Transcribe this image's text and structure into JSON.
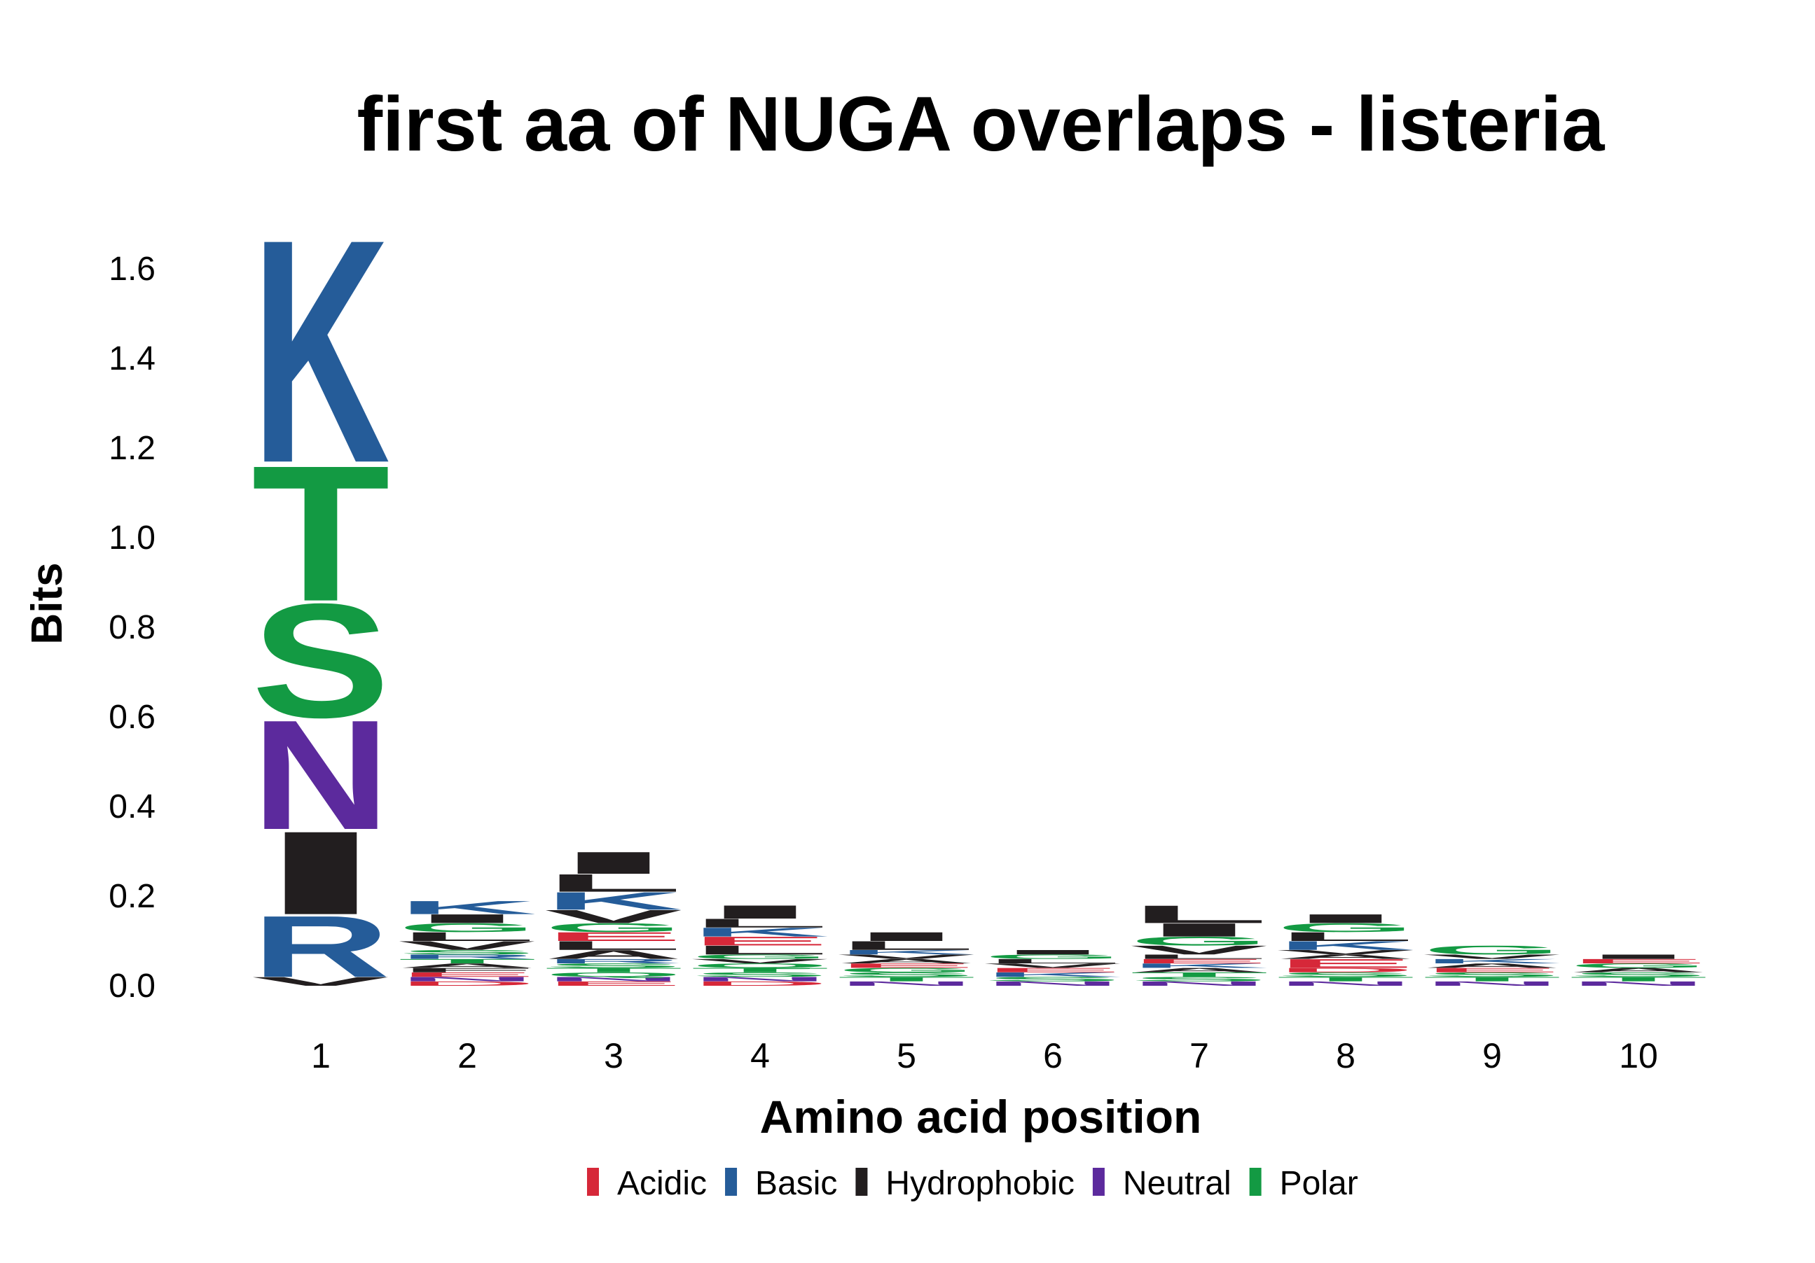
{
  "chart_data": {
    "type": "sequence-logo",
    "title": "first aa of NUGA overlaps - listeria",
    "xlabel": "Amino acid position",
    "ylabel": "Bits",
    "ylim": [
      0,
      1.7
    ],
    "yticks": [
      "0.0",
      "0.2",
      "0.4",
      "0.6",
      "0.8",
      "1.0",
      "1.2",
      "1.4",
      "1.6"
    ],
    "categories": [
      "1",
      "2",
      "3",
      "4",
      "5",
      "6",
      "7",
      "8",
      "9",
      "10"
    ],
    "colors": {
      "Acidic": "#d62839",
      "Basic": "#255c99",
      "Hydrophobic": "#221e1f",
      "Neutral": "#5c2a9d",
      "Polar": "#139a43"
    },
    "legend": [
      {
        "label": "Acidic",
        "color": "#d62839"
      },
      {
        "label": "Basic",
        "color": "#255c99"
      },
      {
        "label": "Hydrophobic",
        "color": "#221e1f"
      },
      {
        "label": "Neutral",
        "color": "#5c2a9d"
      },
      {
        "label": "Polar",
        "color": "#139a43"
      }
    ],
    "columns": [
      {
        "position": "1",
        "letters": [
          {
            "aa": "V",
            "group": "Hydrophobic",
            "bits": 0.02
          },
          {
            "aa": "R",
            "group": "Basic",
            "bits": 0.14
          },
          {
            "aa": "I",
            "group": "Hydrophobic",
            "bits": 0.19
          },
          {
            "aa": "N",
            "group": "Neutral",
            "bits": 0.25
          },
          {
            "aa": "S",
            "group": "Polar",
            "bits": 0.26
          },
          {
            "aa": "T",
            "group": "Polar",
            "bits": 0.31
          },
          {
            "aa": "K",
            "group": "Basic",
            "bits": 0.51
          }
        ]
      },
      {
        "position": "2",
        "letters": [
          {
            "aa": "D",
            "group": "Acidic",
            "bits": 0.01
          },
          {
            "aa": "N",
            "group": "Neutral",
            "bits": 0.01
          },
          {
            "aa": "E",
            "group": "Acidic",
            "bits": 0.01
          },
          {
            "aa": "F",
            "group": "Hydrophobic",
            "bits": 0.01
          },
          {
            "aa": "A",
            "group": "Hydrophobic",
            "bits": 0.01
          },
          {
            "aa": "T",
            "group": "Polar",
            "bits": 0.01
          },
          {
            "aa": "R",
            "group": "Basic",
            "bits": 0.01
          },
          {
            "aa": "S",
            "group": "Polar",
            "bits": 0.01
          },
          {
            "aa": "V",
            "group": "Hydrophobic",
            "bits": 0.02
          },
          {
            "aa": "L",
            "group": "Hydrophobic",
            "bits": 0.02
          },
          {
            "aa": "G",
            "group": "Polar",
            "bits": 0.02
          },
          {
            "aa": "I",
            "group": "Hydrophobic",
            "bits": 0.02
          },
          {
            "aa": "K",
            "group": "Basic",
            "bits": 0.03
          }
        ]
      },
      {
        "position": "3",
        "letters": [
          {
            "aa": "E",
            "group": "Acidic",
            "bits": 0.01
          },
          {
            "aa": "N",
            "group": "Neutral",
            "bits": 0.01
          },
          {
            "aa": "Q",
            "group": "Polar",
            "bits": 0.01
          },
          {
            "aa": "T",
            "group": "Polar",
            "bits": 0.01
          },
          {
            "aa": "S",
            "group": "Polar",
            "bits": 0.01
          },
          {
            "aa": "R",
            "group": "Basic",
            "bits": 0.01
          },
          {
            "aa": "A",
            "group": "Hydrophobic",
            "bits": 0.02
          },
          {
            "aa": "L",
            "group": "Hydrophobic",
            "bits": 0.02
          },
          {
            "aa": "E",
            "group": "Acidic",
            "bits": 0.02
          },
          {
            "aa": "G",
            "group": "Polar",
            "bits": 0.02
          },
          {
            "aa": "V",
            "group": "Hydrophobic",
            "bits": 0.03
          },
          {
            "aa": "K",
            "group": "Basic",
            "bits": 0.04
          },
          {
            "aa": "L",
            "group": "Hydrophobic",
            "bits": 0.04
          },
          {
            "aa": "I",
            "group": "Hydrophobic",
            "bits": 0.05
          }
        ]
      },
      {
        "position": "4",
        "letters": [
          {
            "aa": "D",
            "group": "Acidic",
            "bits": 0.01
          },
          {
            "aa": "N",
            "group": "Neutral",
            "bits": 0.01
          },
          {
            "aa": "S",
            "group": "Polar",
            "bits": 0.01
          },
          {
            "aa": "T",
            "group": "Polar",
            "bits": 0.01
          },
          {
            "aa": "Q",
            "group": "Polar",
            "bits": 0.01
          },
          {
            "aa": "V",
            "group": "Hydrophobic",
            "bits": 0.01
          },
          {
            "aa": "G",
            "group": "Polar",
            "bits": 0.01
          },
          {
            "aa": "L",
            "group": "Hydrophobic",
            "bits": 0.02
          },
          {
            "aa": "E",
            "group": "Acidic",
            "bits": 0.02
          },
          {
            "aa": "K",
            "group": "Basic",
            "bits": 0.02
          },
          {
            "aa": "L",
            "group": "Hydrophobic",
            "bits": 0.02
          },
          {
            "aa": "I",
            "group": "Hydrophobic",
            "bits": 0.03
          }
        ]
      },
      {
        "position": "5",
        "letters": [
          {
            "aa": "N",
            "group": "Neutral",
            "bits": 0.01
          },
          {
            "aa": "T",
            "group": "Polar",
            "bits": 0.01
          },
          {
            "aa": "S",
            "group": "Polar",
            "bits": 0.01
          },
          {
            "aa": "G",
            "group": "Polar",
            "bits": 0.01
          },
          {
            "aa": "E",
            "group": "Acidic",
            "bits": 0.01
          },
          {
            "aa": "A",
            "group": "Hydrophobic",
            "bits": 0.01
          },
          {
            "aa": "V",
            "group": "Hydrophobic",
            "bits": 0.01
          },
          {
            "aa": "K",
            "group": "Basic",
            "bits": 0.01
          },
          {
            "aa": "L",
            "group": "Hydrophobic",
            "bits": 0.02
          },
          {
            "aa": "I",
            "group": "Hydrophobic",
            "bits": 0.02
          }
        ]
      },
      {
        "position": "6",
        "letters": [
          {
            "aa": "N",
            "group": "Neutral",
            "bits": 0.01
          },
          {
            "aa": "S",
            "group": "Polar",
            "bits": 0.01
          },
          {
            "aa": "K",
            "group": "Basic",
            "bits": 0.01
          },
          {
            "aa": "E",
            "group": "Acidic",
            "bits": 0.01
          },
          {
            "aa": "V",
            "group": "Hydrophobic",
            "bits": 0.01
          },
          {
            "aa": "L",
            "group": "Hydrophobic",
            "bits": 0.01
          },
          {
            "aa": "G",
            "group": "Polar",
            "bits": 0.01
          },
          {
            "aa": "I",
            "group": "Hydrophobic",
            "bits": 0.01
          }
        ]
      },
      {
        "position": "7",
        "letters": [
          {
            "aa": "N",
            "group": "Neutral",
            "bits": 0.01
          },
          {
            "aa": "S",
            "group": "Polar",
            "bits": 0.01
          },
          {
            "aa": "T",
            "group": "Polar",
            "bits": 0.01
          },
          {
            "aa": "A",
            "group": "Hydrophobic",
            "bits": 0.01
          },
          {
            "aa": "K",
            "group": "Basic",
            "bits": 0.01
          },
          {
            "aa": "E",
            "group": "Acidic",
            "bits": 0.01
          },
          {
            "aa": "L",
            "group": "Hydrophobic",
            "bits": 0.01
          },
          {
            "aa": "V",
            "group": "Hydrophobic",
            "bits": 0.02
          },
          {
            "aa": "G",
            "group": "Polar",
            "bits": 0.02
          },
          {
            "aa": "I",
            "group": "Hydrophobic",
            "bits": 0.03
          },
          {
            "aa": "L",
            "group": "Hydrophobic",
            "bits": 0.04
          }
        ]
      },
      {
        "position": "8",
        "letters": [
          {
            "aa": "N",
            "group": "Neutral",
            "bits": 0.01
          },
          {
            "aa": "T",
            "group": "Polar",
            "bits": 0.01
          },
          {
            "aa": "S",
            "group": "Polar",
            "bits": 0.01
          },
          {
            "aa": "D",
            "group": "Acidic",
            "bits": 0.01
          },
          {
            "aa": "E",
            "group": "Acidic",
            "bits": 0.02
          },
          {
            "aa": "A",
            "group": "Hydrophobic",
            "bits": 0.01
          },
          {
            "aa": "V",
            "group": "Hydrophobic",
            "bits": 0.01
          },
          {
            "aa": "K",
            "group": "Basic",
            "bits": 0.02
          },
          {
            "aa": "L",
            "group": "Hydrophobic",
            "bits": 0.02
          },
          {
            "aa": "G",
            "group": "Polar",
            "bits": 0.02
          },
          {
            "aa": "I",
            "group": "Hydrophobic",
            "bits": 0.02
          }
        ]
      },
      {
        "position": "9",
        "letters": [
          {
            "aa": "N",
            "group": "Neutral",
            "bits": 0.01
          },
          {
            "aa": "T",
            "group": "Polar",
            "bits": 0.01
          },
          {
            "aa": "S",
            "group": "Polar",
            "bits": 0.01
          },
          {
            "aa": "E",
            "group": "Acidic",
            "bits": 0.01
          },
          {
            "aa": "A",
            "group": "Hydrophobic",
            "bits": 0.01
          },
          {
            "aa": "K",
            "group": "Basic",
            "bits": 0.01
          },
          {
            "aa": "V",
            "group": "Hydrophobic",
            "bits": 0.01
          },
          {
            "aa": "G",
            "group": "Polar",
            "bits": 0.02
          }
        ]
      },
      {
        "position": "10",
        "letters": [
          {
            "aa": "N",
            "group": "Neutral",
            "bits": 0.01
          },
          {
            "aa": "T",
            "group": "Polar",
            "bits": 0.01
          },
          {
            "aa": "S",
            "group": "Polar",
            "bits": 0.01
          },
          {
            "aa": "A",
            "group": "Hydrophobic",
            "bits": 0.01
          },
          {
            "aa": "G",
            "group": "Polar",
            "bits": 0.01
          },
          {
            "aa": "E",
            "group": "Acidic",
            "bits": 0.01
          },
          {
            "aa": "I",
            "group": "Hydrophobic",
            "bits": 0.01
          }
        ]
      }
    ]
  }
}
